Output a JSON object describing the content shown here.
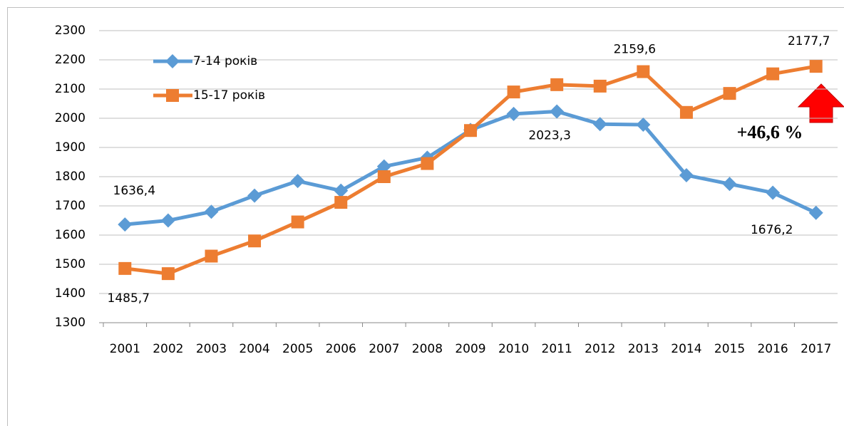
{
  "chart_data": {
    "type": "line",
    "categories": [
      "2001",
      "2002",
      "2003",
      "2004",
      "2005",
      "2006",
      "2007",
      "2008",
      "2009",
      "2010",
      "2011",
      "2012",
      "2013",
      "2014",
      "2015",
      "2016",
      "2017"
    ],
    "series": [
      {
        "name": "7-14 років",
        "color": "#5b9bd5",
        "marker": "diamond",
        "values": [
          1636.4,
          1650,
          1680,
          1735,
          1785,
          1752,
          1835,
          1865,
          1960,
          2015,
          2023.3,
          1980,
          1978,
          1805,
          1775,
          1745,
          1676.2
        ],
        "value_labels": [
          "1636,4",
          null,
          null,
          null,
          null,
          null,
          null,
          null,
          null,
          null,
          "2023,3",
          null,
          null,
          null,
          null,
          null,
          "1676,2"
        ]
      },
      {
        "name": "15-17 років",
        "color": "#ed7d31",
        "marker": "square",
        "values": [
          1485.7,
          1468,
          1528,
          1580,
          1645,
          1712,
          1800,
          1845,
          1958,
          2090,
          2115,
          2110,
          2159.6,
          2020,
          2085,
          2152,
          2177.7
        ],
        "value_labels": [
          "1485,7",
          null,
          null,
          null,
          null,
          null,
          null,
          null,
          null,
          null,
          null,
          null,
          "2159,6",
          null,
          null,
          null,
          "2177,7"
        ]
      }
    ],
    "ylim": [
      1300,
      2300
    ],
    "yticks": [
      1300,
      1400,
      1500,
      1600,
      1700,
      1800,
      1900,
      2000,
      2100,
      2200,
      2300
    ],
    "grid": true,
    "legend": "top-left",
    "annotation": "+46,6 %"
  }
}
